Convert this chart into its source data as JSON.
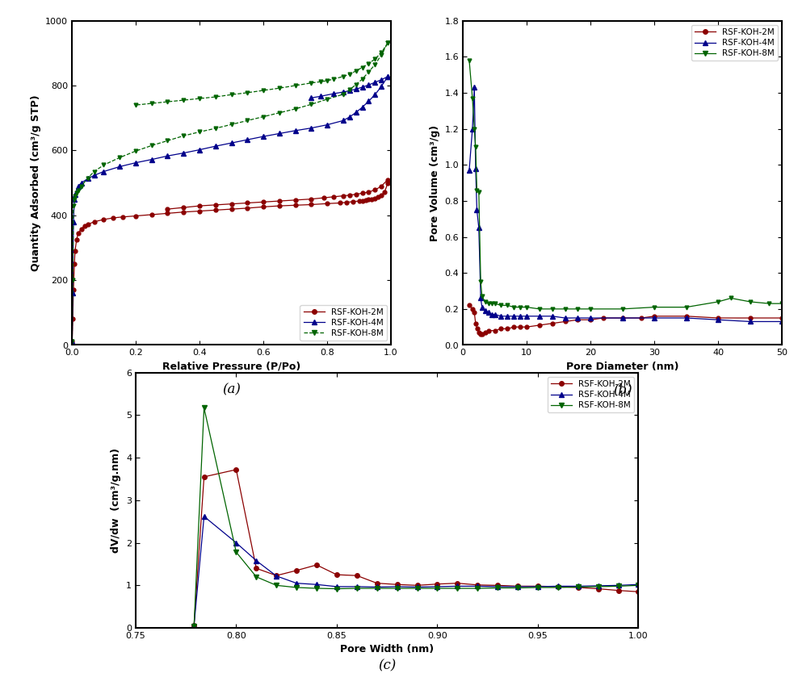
{
  "colors": {
    "2M": "#8B0000",
    "4M": "#00008B",
    "8M": "#006400"
  },
  "panel_a": {
    "xlabel": "Relative Pressure (P/Po)",
    "ylabel": "Quantity Adsorbed (cm³/g STP)",
    "xlim": [
      0,
      1.0
    ],
    "ylim": [
      0,
      1000
    ],
    "2M_ads_x": [
      0.001,
      0.003,
      0.005,
      0.008,
      0.01,
      0.015,
      0.02,
      0.03,
      0.04,
      0.05,
      0.07,
      0.1,
      0.13,
      0.16,
      0.2,
      0.25,
      0.3,
      0.35,
      0.4,
      0.45,
      0.5,
      0.55,
      0.6,
      0.65,
      0.7,
      0.75,
      0.8,
      0.84,
      0.86,
      0.88,
      0.9,
      0.91,
      0.92,
      0.93,
      0.94,
      0.95,
      0.96,
      0.97,
      0.98,
      0.99
    ],
    "2M_ads_y": [
      10,
      80,
      170,
      250,
      290,
      325,
      345,
      358,
      368,
      372,
      380,
      387,
      392,
      395,
      398,
      402,
      406,
      410,
      413,
      416,
      419,
      422,
      426,
      429,
      431,
      433,
      436,
      438,
      440,
      442,
      444,
      445,
      447,
      448,
      450,
      452,
      456,
      462,
      472,
      500
    ],
    "2M_des_x": [
      0.99,
      0.97,
      0.95,
      0.93,
      0.91,
      0.89,
      0.87,
      0.85,
      0.82,
      0.79,
      0.75,
      0.7,
      0.65,
      0.6,
      0.55,
      0.5,
      0.45,
      0.4,
      0.35,
      0.3
    ],
    "2M_des_y": [
      510,
      490,
      478,
      472,
      468,
      465,
      462,
      460,
      457,
      454,
      450,
      447,
      444,
      441,
      438,
      435,
      432,
      429,
      424,
      419
    ],
    "4M_ads_x": [
      0.001,
      0.003,
      0.005,
      0.008,
      0.01,
      0.02,
      0.03,
      0.05,
      0.07,
      0.1,
      0.15,
      0.2,
      0.25,
      0.3,
      0.35,
      0.4,
      0.45,
      0.5,
      0.55,
      0.6,
      0.65,
      0.7,
      0.75,
      0.8,
      0.85,
      0.87,
      0.89,
      0.91,
      0.93,
      0.95,
      0.97,
      0.99
    ],
    "4M_ads_y": [
      10,
      160,
      380,
      450,
      465,
      490,
      500,
      513,
      523,
      535,
      550,
      562,
      572,
      583,
      592,
      602,
      613,
      623,
      633,
      643,
      652,
      661,
      669,
      679,
      692,
      703,
      717,
      733,
      752,
      772,
      798,
      828
    ],
    "4M_des_x": [
      0.99,
      0.97,
      0.95,
      0.93,
      0.91,
      0.89,
      0.87,
      0.85,
      0.82,
      0.78,
      0.75
    ],
    "4M_des_y": [
      828,
      818,
      810,
      802,
      795,
      789,
      784,
      780,
      775,
      767,
      762
    ],
    "8M_ads_x": [
      0.001,
      0.003,
      0.005,
      0.008,
      0.01,
      0.015,
      0.02,
      0.03,
      0.05,
      0.07,
      0.1,
      0.15,
      0.2,
      0.25,
      0.3,
      0.35,
      0.4,
      0.45,
      0.5,
      0.55,
      0.6,
      0.65,
      0.7,
      0.75,
      0.8,
      0.85,
      0.87,
      0.89,
      0.91,
      0.93,
      0.95,
      0.97,
      0.99
    ],
    "8M_ads_y": [
      10,
      200,
      430,
      450,
      458,
      468,
      476,
      490,
      515,
      535,
      555,
      578,
      598,
      615,
      630,
      645,
      657,
      668,
      680,
      692,
      704,
      716,
      728,
      742,
      758,
      773,
      787,
      803,
      820,
      842,
      865,
      895,
      932
    ],
    "8M_des_x": [
      0.99,
      0.97,
      0.95,
      0.93,
      0.91,
      0.89,
      0.87,
      0.85,
      0.82,
      0.8,
      0.78,
      0.75,
      0.7,
      0.65,
      0.6,
      0.55,
      0.5,
      0.45,
      0.4,
      0.35,
      0.3,
      0.25,
      0.2
    ],
    "8M_des_y": [
      932,
      902,
      882,
      868,
      856,
      845,
      835,
      828,
      820,
      815,
      812,
      808,
      800,
      792,
      785,
      778,
      772,
      765,
      760,
      755,
      750,
      745,
      740
    ]
  },
  "panel_b": {
    "xlabel": "Pore Diameter (nm)",
    "ylabel": "Pore Volume (cm³/g)",
    "xlim": [
      0,
      50
    ],
    "ylim": [
      0,
      1.8
    ],
    "2M_x": [
      1.0,
      1.5,
      1.8,
      2.0,
      2.3,
      2.5,
      2.8,
      3.0,
      3.5,
      4.0,
      5.0,
      6.0,
      7.0,
      8.0,
      9.0,
      10,
      12,
      14,
      16,
      18,
      20,
      22,
      25,
      28,
      30,
      35,
      40,
      45,
      50
    ],
    "2M_y": [
      0.22,
      0.2,
      0.18,
      0.12,
      0.09,
      0.07,
      0.06,
      0.06,
      0.07,
      0.08,
      0.08,
      0.09,
      0.09,
      0.1,
      0.1,
      0.1,
      0.11,
      0.12,
      0.13,
      0.14,
      0.14,
      0.15,
      0.15,
      0.15,
      0.16,
      0.16,
      0.15,
      0.15,
      0.15
    ],
    "4M_x": [
      1.0,
      1.5,
      1.8,
      2.0,
      2.2,
      2.5,
      2.8,
      3.0,
      3.5,
      4.0,
      4.5,
      5.0,
      6.0,
      7.0,
      8.0,
      9.0,
      10,
      12,
      14,
      16,
      18,
      20,
      25,
      30,
      35,
      40,
      45,
      50
    ],
    "4M_y": [
      0.97,
      1.2,
      1.43,
      0.98,
      0.75,
      0.65,
      0.26,
      0.21,
      0.19,
      0.18,
      0.17,
      0.17,
      0.16,
      0.16,
      0.16,
      0.16,
      0.16,
      0.16,
      0.16,
      0.15,
      0.15,
      0.15,
      0.15,
      0.15,
      0.15,
      0.14,
      0.13,
      0.13
    ],
    "8M_x": [
      1.0,
      1.5,
      1.8,
      2.0,
      2.2,
      2.5,
      2.8,
      3.0,
      3.5,
      4.0,
      4.5,
      5.0,
      6.0,
      7.0,
      8.0,
      9.0,
      10,
      12,
      14,
      16,
      18,
      20,
      25,
      30,
      35,
      40,
      42,
      45,
      48,
      50
    ],
    "8M_y": [
      1.58,
      1.37,
      1.2,
      1.1,
      0.86,
      0.85,
      0.35,
      0.27,
      0.24,
      0.23,
      0.23,
      0.23,
      0.22,
      0.22,
      0.21,
      0.21,
      0.21,
      0.2,
      0.2,
      0.2,
      0.2,
      0.2,
      0.2,
      0.21,
      0.21,
      0.24,
      0.26,
      0.24,
      0.23,
      0.23
    ]
  },
  "panel_c": {
    "xlabel": "Pore Width (nm)",
    "ylabel": "dV/dw  (cm³/g.nm)",
    "xlim": [
      0.75,
      1.0
    ],
    "ylim": [
      0,
      6
    ],
    "2M_x": [
      0.779,
      0.784,
      0.8,
      0.81,
      0.82,
      0.83,
      0.84,
      0.85,
      0.86,
      0.87,
      0.88,
      0.89,
      0.9,
      0.91,
      0.92,
      0.93,
      0.94,
      0.95,
      0.96,
      0.97,
      0.98,
      0.99,
      1.0
    ],
    "2M_y": [
      0.05,
      3.55,
      3.72,
      1.4,
      1.23,
      1.35,
      1.48,
      1.25,
      1.23,
      1.05,
      1.02,
      1.0,
      1.03,
      1.05,
      1.01,
      1.0,
      0.98,
      0.98,
      0.97,
      0.95,
      0.92,
      0.88,
      0.85
    ],
    "4M_x": [
      0.779,
      0.784,
      0.8,
      0.81,
      0.82,
      0.83,
      0.84,
      0.85,
      0.86,
      0.87,
      0.88,
      0.89,
      0.9,
      0.91,
      0.92,
      0.93,
      0.94,
      0.95,
      0.96,
      0.97,
      0.98,
      0.99,
      1.0
    ],
    "4M_y": [
      0.05,
      2.62,
      2.0,
      1.58,
      1.22,
      1.05,
      1.02,
      0.97,
      0.97,
      0.96,
      0.97,
      0.96,
      0.97,
      0.98,
      0.98,
      0.97,
      0.97,
      0.97,
      0.98,
      0.98,
      0.99,
      1.0,
      1.02
    ],
    "8M_x": [
      0.779,
      0.784,
      0.8,
      0.81,
      0.82,
      0.83,
      0.84,
      0.85,
      0.86,
      0.87,
      0.88,
      0.89,
      0.9,
      0.91,
      0.92,
      0.93,
      0.94,
      0.95,
      0.96,
      0.97,
      0.98,
      0.99,
      1.0
    ],
    "8M_y": [
      0.03,
      5.17,
      1.78,
      1.2,
      1.0,
      0.95,
      0.93,
      0.92,
      0.93,
      0.93,
      0.93,
      0.93,
      0.93,
      0.93,
      0.93,
      0.94,
      0.94,
      0.95,
      0.95,
      0.96,
      0.97,
      0.98,
      1.0
    ]
  }
}
